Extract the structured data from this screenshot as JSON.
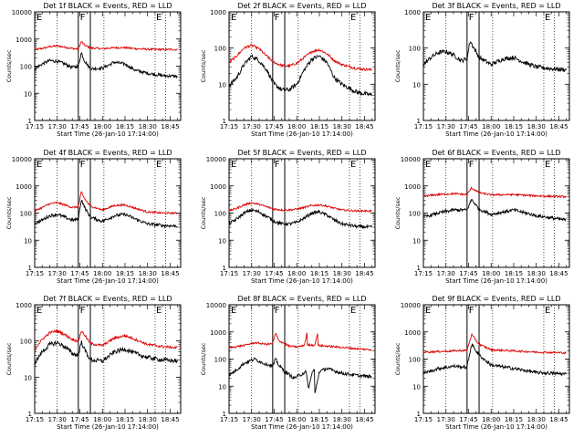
{
  "chart_data": [
    {
      "type": "line",
      "title": "Det 1f BLACK = Events, RED = LLD",
      "xlabel": "Start Time (26-Jan-10 17:14:00)",
      "ylabel": "Counts/sec",
      "yscale": "log",
      "ylim": [
        1,
        10000
      ],
      "xlim": [
        "17:15",
        "18:52"
      ],
      "xticks": [
        "17:15",
        "17:30",
        "17:45",
        "18:00",
        "18:15",
        "18:30",
        "18:45"
      ],
      "yticks": [
        "1",
        "10",
        "100",
        "1000",
        "10000"
      ],
      "markers": {
        "E_left": "E",
        "F": "F",
        "E_right": "E"
      },
      "series": [
        {
          "name": "LLD",
          "color": "#dd0000",
          "x": [
            "17:15",
            "17:20",
            "17:25",
            "17:30",
            "17:35",
            "17:40",
            "17:44",
            "17:46",
            "17:48",
            "17:52",
            "18:00",
            "18:08",
            "18:15",
            "18:22",
            "18:30",
            "18:40",
            "18:50"
          ],
          "values": [
            400,
            450,
            520,
            560,
            500,
            450,
            420,
            820,
            600,
            470,
            440,
            480,
            480,
            440,
            420,
            410,
            410
          ]
        },
        {
          "name": "Events",
          "color": "#000000",
          "x": [
            "17:15",
            "17:20",
            "17:25",
            "17:30",
            "17:35",
            "17:40",
            "17:44",
            "17:46",
            "17:48",
            "17:52",
            "18:00",
            "18:08",
            "18:15",
            "18:22",
            "18:30",
            "18:40",
            "18:50"
          ],
          "values": [
            80,
            120,
            160,
            150,
            120,
            90,
            100,
            320,
            160,
            80,
            85,
            140,
            120,
            70,
            55,
            45,
            42
          ]
        }
      ]
    },
    {
      "type": "line",
      "title": "Det 2f BLACK = Events, RED = LLD",
      "xlabel": "Start Time (26-Jan-10 17:14:00)",
      "ylabel": "Counts/sec",
      "yscale": "log",
      "ylim": [
        1,
        1000
      ],
      "xlim": [
        "17:15",
        "18:52"
      ],
      "xticks": [
        "17:15",
        "17:30",
        "17:45",
        "18:00",
        "18:15",
        "18:30",
        "18:45"
      ],
      "yticks": [
        "1",
        "10",
        "100",
        "1000"
      ],
      "markers": {
        "E_left": "E",
        "F": "F",
        "E_right": "E"
      },
      "series": [
        {
          "name": "LLD",
          "color": "#dd0000",
          "x": [
            "17:15",
            "17:20",
            "17:25",
            "17:30",
            "17:35",
            "17:40",
            "17:45",
            "17:50",
            "17:55",
            "18:00",
            "18:05",
            "18:10",
            "18:15",
            "18:20",
            "18:25",
            "18:30",
            "18:40",
            "18:50"
          ],
          "values": [
            40,
            60,
            100,
            120,
            95,
            60,
            40,
            33,
            32,
            38,
            55,
            80,
            90,
            70,
            45,
            35,
            27,
            25
          ]
        },
        {
          "name": "Events",
          "color": "#000000",
          "x": [
            "17:15",
            "17:20",
            "17:25",
            "17:30",
            "17:35",
            "17:40",
            "17:45",
            "17:50",
            "17:55",
            "18:00",
            "18:05",
            "18:10",
            "18:15",
            "18:20",
            "18:25",
            "18:30",
            "18:40",
            "18:50"
          ],
          "values": [
            9,
            15,
            35,
            60,
            45,
            25,
            10,
            7,
            7,
            10,
            25,
            50,
            60,
            40,
            15,
            10,
            6,
            5
          ]
        }
      ]
    },
    {
      "type": "line",
      "title": "Det 3f BLACK = Events, RED = LLD",
      "xlabel": "Start Time (26-Jan-10 17:14:00)",
      "ylabel": "Counts/sec",
      "yscale": "log",
      "ylim": [
        1,
        1000
      ],
      "xlim": [
        "17:15",
        "18:52"
      ],
      "xticks": [
        "17:15",
        "17:30",
        "17:45",
        "18:00",
        "18:15",
        "18:30",
        "18:45"
      ],
      "yticks": [
        "1",
        "10",
        "100",
        "1000"
      ],
      "markers": {
        "E_left": "E",
        "F": "F",
        "E_right": "E"
      },
      "series": [
        {
          "name": "Events",
          "color": "#000000",
          "x": [
            "17:15",
            "17:20",
            "17:25",
            "17:30",
            "17:35",
            "17:40",
            "17:44",
            "17:46",
            "17:48",
            "17:52",
            "18:00",
            "18:08",
            "18:15",
            "18:22",
            "18:30",
            "18:40",
            "18:50"
          ],
          "values": [
            35,
            55,
            75,
            80,
            65,
            45,
            50,
            160,
            110,
            55,
            35,
            50,
            55,
            40,
            30,
            27,
            25
          ]
        }
      ]
    },
    {
      "type": "line",
      "title": "Det 4f BLACK = Events, RED = LLD",
      "xlabel": "Start Time (26-Jan-10 17:14:00)",
      "ylabel": "Counts/sec",
      "yscale": "log",
      "ylim": [
        1,
        10000
      ],
      "xlim": [
        "17:15",
        "18:52"
      ],
      "xticks": [
        "17:15",
        "17:30",
        "17:45",
        "18:00",
        "18:15",
        "18:30",
        "18:45"
      ],
      "yticks": [
        "1",
        "10",
        "100",
        "1000",
        "10000"
      ],
      "markers": {
        "E_left": "E",
        "F": "F",
        "E_right": "E"
      },
      "series": [
        {
          "name": "LLD",
          "color": "#dd0000",
          "x": [
            "17:15",
            "17:20",
            "17:25",
            "17:30",
            "17:35",
            "17:40",
            "17:44",
            "17:46",
            "17:48",
            "17:52",
            "18:00",
            "18:08",
            "18:15",
            "18:22",
            "18:30",
            "18:40",
            "18:50"
          ],
          "values": [
            120,
            160,
            220,
            240,
            200,
            160,
            170,
            600,
            350,
            180,
            130,
            190,
            200,
            150,
            110,
            100,
            100
          ]
        },
        {
          "name": "Events",
          "color": "#000000",
          "x": [
            "17:15",
            "17:20",
            "17:25",
            "17:30",
            "17:35",
            "17:40",
            "17:44",
            "17:46",
            "17:48",
            "17:52",
            "18:00",
            "18:08",
            "18:15",
            "18:22",
            "18:30",
            "18:40",
            "18:50"
          ],
          "values": [
            40,
            55,
            80,
            90,
            70,
            55,
            60,
            320,
            170,
            70,
            50,
            80,
            90,
            60,
            40,
            35,
            33
          ]
        }
      ]
    },
    {
      "type": "line",
      "title": "Det 5f BLACK = Events, RED = LLD",
      "xlabel": "Start Time (26-Jan-10 17:14:00)",
      "ylabel": "Counts/sec",
      "yscale": "log",
      "ylim": [
        1,
        10000
      ],
      "xlim": [
        "17:15",
        "18:52"
      ],
      "xticks": [
        "17:15",
        "17:30",
        "17:45",
        "18:00",
        "18:15",
        "18:30",
        "18:45"
      ],
      "yticks": [
        "1",
        "10",
        "100",
        "1000",
        "10000"
      ],
      "markers": {
        "E_left": "E",
        "F": "F",
        "E_right": "E"
      },
      "series": [
        {
          "name": "LLD",
          "color": "#dd0000",
          "x": [
            "17:15",
            "17:20",
            "17:25",
            "17:30",
            "17:35",
            "17:40",
            "17:45",
            "17:50",
            "17:55",
            "18:00",
            "18:05",
            "18:10",
            "18:15",
            "18:20",
            "18:25",
            "18:30",
            "18:40",
            "18:50"
          ],
          "values": [
            120,
            150,
            200,
            240,
            210,
            170,
            140,
            130,
            130,
            140,
            160,
            190,
            200,
            180,
            150,
            130,
            120,
            120
          ]
        },
        {
          "name": "Events",
          "color": "#000000",
          "x": [
            "17:15",
            "17:20",
            "17:25",
            "17:30",
            "17:35",
            "17:40",
            "17:45",
            "17:50",
            "17:55",
            "18:00",
            "18:05",
            "18:10",
            "18:15",
            "18:20",
            "18:25",
            "18:30",
            "18:40",
            "18:50"
          ],
          "values": [
            40,
            60,
            100,
            130,
            110,
            75,
            50,
            40,
            40,
            45,
            65,
            100,
            110,
            85,
            55,
            40,
            32,
            30
          ]
        }
      ]
    },
    {
      "type": "line",
      "title": "Det 6f BLACK = Events, RED = LLD",
      "xlabel": "Start Time (26-Jan-10 17:14:00)",
      "ylabel": "Counts/sec",
      "yscale": "log",
      "ylim": [
        1,
        10000
      ],
      "xlim": [
        "17:15",
        "18:52"
      ],
      "xticks": [
        "17:15",
        "17:30",
        "17:45",
        "18:00",
        "18:15",
        "18:30",
        "18:45"
      ],
      "yticks": [
        "1",
        "10",
        "100",
        "1000",
        "10000"
      ],
      "markers": {
        "E_left": "E",
        "F": "F",
        "E_right": "E"
      },
      "series": [
        {
          "name": "LLD",
          "color": "#dd0000",
          "x": [
            "17:15",
            "17:25",
            "17:35",
            "17:44",
            "17:47",
            "17:52",
            "18:00",
            "18:15",
            "18:30",
            "18:50"
          ],
          "values": [
            420,
            480,
            520,
            480,
            850,
            560,
            470,
            480,
            430,
            400
          ]
        },
        {
          "name": "Events",
          "color": "#000000",
          "x": [
            "17:15",
            "17:25",
            "17:35",
            "17:44",
            "17:47",
            "17:52",
            "18:00",
            "18:15",
            "18:30",
            "18:50"
          ],
          "values": [
            70,
            100,
            130,
            130,
            320,
            140,
            90,
            130,
            80,
            55
          ]
        }
      ]
    },
    {
      "type": "line",
      "title": "Det 7f BLACK = Events, RED = LLD",
      "xlabel": "Start Time (26-Jan-10 17:14:00)",
      "ylabel": "Counts/sec",
      "yscale": "log",
      "ylim": [
        1,
        1000
      ],
      "xlim": [
        "17:15",
        "18:52"
      ],
      "xticks": [
        "17:15",
        "17:30",
        "17:45",
        "18:00",
        "18:15",
        "18:30",
        "18:45"
      ],
      "yticks": [
        "1",
        "10",
        "100",
        "1000"
      ],
      "markers": {
        "E_left": "E",
        "F": "F",
        "E_right": "E"
      },
      "series": [
        {
          "name": "LLD",
          "color": "#dd0000",
          "x": [
            "17:15",
            "17:20",
            "17:25",
            "17:30",
            "17:35",
            "17:40",
            "17:44",
            "17:46",
            "17:48",
            "17:52",
            "18:00",
            "18:08",
            "18:15",
            "18:22",
            "18:30",
            "18:40",
            "18:50"
          ],
          "values": [
            60,
            110,
            170,
            190,
            150,
            110,
            100,
            190,
            150,
            85,
            75,
            120,
            140,
            110,
            80,
            70,
            65
          ]
        },
        {
          "name": "Events",
          "color": "#000000",
          "x": [
            "17:15",
            "17:20",
            "17:25",
            "17:30",
            "17:35",
            "17:40",
            "17:44",
            "17:46",
            "17:48",
            "17:52",
            "18:00",
            "18:08",
            "18:15",
            "18:22",
            "18:30",
            "18:40",
            "18:50"
          ],
          "values": [
            25,
            50,
            80,
            90,
            70,
            45,
            40,
            95,
            60,
            30,
            28,
            50,
            60,
            45,
            35,
            30,
            28
          ]
        }
      ]
    },
    {
      "type": "line",
      "title": "Det 8f BLACK = Events, RED = LLD",
      "xlabel": "Start Time (26-Jan-10 17:14:00)",
      "ylabel": "Counts/sec",
      "yscale": "log",
      "ylim": [
        1,
        10000
      ],
      "xlim": [
        "17:15",
        "18:52"
      ],
      "xticks": [
        "17:15",
        "17:30",
        "17:45",
        "18:00",
        "18:15",
        "18:30",
        "18:45"
      ],
      "yticks": [
        "1",
        "10",
        "100",
        "1000",
        "10000"
      ],
      "markers": {
        "E_left": "E",
        "F": "F",
        "E_right": "E"
      },
      "series": [
        {
          "name": "LLD",
          "color": "#dd0000",
          "x": [
            "17:15",
            "17:25",
            "17:32",
            "17:40",
            "17:44",
            "17:46",
            "17:48",
            "17:55",
            "18:00",
            "18:05",
            "18:07",
            "18:07",
            "18:12",
            "18:14",
            "18:14",
            "18:20",
            "18:30",
            "18:40",
            "18:50"
          ],
          "values": [
            260,
            320,
            400,
            350,
            370,
            900,
            480,
            300,
            280,
            320,
            1000,
            330,
            330,
            1000,
            320,
            300,
            270,
            240,
            220
          ]
        },
        {
          "name": "Events",
          "color": "#000000",
          "x": [
            "17:15",
            "17:20",
            "17:25",
            "17:32",
            "17:38",
            "17:44",
            "17:46",
            "17:48",
            "17:52",
            "17:58",
            "18:02",
            "18:06",
            "18:08",
            "18:10",
            "18:12",
            "18:12",
            "18:15",
            "18:20",
            "18:30",
            "18:40",
            "18:50"
          ],
          "values": [
            25,
            40,
            70,
            100,
            70,
            55,
            100,
            60,
            35,
            20,
            25,
            35,
            8,
            30,
            45,
            5,
            35,
            45,
            30,
            25,
            22
          ]
        }
      ]
    },
    {
      "type": "line",
      "title": "Det 9f BLACK = Events, RED = LLD",
      "xlabel": "Start Time (26-Jan-10 17:14:00)",
      "ylabel": "Counts/sec",
      "yscale": "log",
      "ylim": [
        1,
        10000
      ],
      "xlim": [
        "17:15",
        "18:52"
      ],
      "xticks": [
        "17:15",
        "17:30",
        "17:45",
        "18:00",
        "18:15",
        "18:30",
        "18:45"
      ],
      "yticks": [
        "1",
        "10",
        "100",
        "1000",
        "10000"
      ],
      "markers": {
        "E_left": "E",
        "F": "F",
        "E_right": "E"
      },
      "series": [
        {
          "name": "LLD",
          "color": "#dd0000",
          "x": [
            "17:15",
            "17:25",
            "17:35",
            "17:44",
            "17:47",
            "17:52",
            "18:00",
            "18:15",
            "18:30",
            "18:50"
          ],
          "values": [
            180,
            190,
            200,
            210,
            800,
            350,
            220,
            200,
            180,
            170
          ]
        },
        {
          "name": "Events",
          "color": "#000000",
          "x": [
            "17:15",
            "17:25",
            "17:35",
            "17:44",
            "17:47",
            "17:52",
            "18:00",
            "18:15",
            "18:30",
            "18:50"
          ],
          "values": [
            30,
            45,
            55,
            50,
            350,
            140,
            60,
            45,
            32,
            28
          ]
        }
      ]
    }
  ]
}
